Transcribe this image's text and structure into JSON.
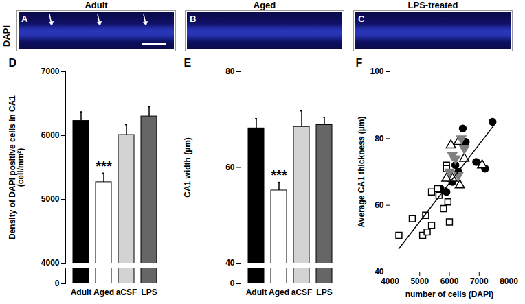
{
  "figure": {
    "row_label": "DAPI",
    "panels": [
      {
        "letter": "A",
        "title": "Adult"
      },
      {
        "letter": "B",
        "title": "Aged"
      },
      {
        "letter": "C",
        "title": "LPS-treated"
      }
    ]
  },
  "chart_data": [
    {
      "type": "bar",
      "panel": "D",
      "categories": [
        "Adult",
        "Aged",
        "aCSF",
        "LPS"
      ],
      "values": [
        6230,
        5270,
        6010,
        6300
      ],
      "errors": [
        140,
        140,
        160,
        150
      ],
      "colors": [
        "#000000",
        "#ffffff",
        "#d3d3d3",
        "#666666"
      ],
      "ylabel": "Density of DAPI positive cells in CA1\n(cell/mm²)",
      "ylim": [
        4000,
        7000
      ],
      "yticks": [
        4000,
        5000,
        6000,
        7000
      ],
      "ybreak": {
        "ylim": [
          0,
          200
        ],
        "yticks": [
          0
        ]
      },
      "annotations": [
        {
          "category": "Aged",
          "text": "***"
        }
      ]
    },
    {
      "type": "bar",
      "panel": "E",
      "categories": [
        "Adult",
        "Aged",
        "aCSF",
        "LPS"
      ],
      "values": [
        68.2,
        55.2,
        68.5,
        68.9
      ],
      "errors": [
        2.0,
        1.7,
        3.3,
        1.6
      ],
      "colors": [
        "#000000",
        "#ffffff",
        "#d3d3d3",
        "#666666"
      ],
      "ylabel": "CA1 width (µm)",
      "ylim": [
        40,
        80
      ],
      "yticks": [
        40,
        60,
        80
      ],
      "ybreak": {
        "ylim": [
          0,
          2.5
        ],
        "yticks": [
          0
        ]
      },
      "annotations": [
        {
          "category": "Aged",
          "text": "***"
        }
      ]
    },
    {
      "type": "scatter",
      "panel": "F",
      "xlabel": "number of cells (DAPI)",
      "ylabel": "Average CA1 thickness (µm)",
      "xlim": [
        4000,
        8000
      ],
      "xticks": [
        4000,
        5000,
        6000,
        7000,
        8000
      ],
      "ylim": [
        40,
        100
      ],
      "yticks": [
        40,
        60,
        80,
        100
      ],
      "series": [
        {
          "marker": "circle",
          "color": "#000000",
          "x": [
            6450,
            7450,
            6900,
            7200,
            6300,
            6100,
            5700,
            6550,
            6200,
            5900
          ],
          "values": [
            83,
            85,
            73,
            71,
            70,
            67,
            65,
            79,
            72,
            64
          ]
        },
        {
          "marker": "square-open",
          "color": "#000000",
          "x": [
            4300,
            4750,
            5100,
            5250,
            5400,
            5200,
            5400,
            5600,
            5900,
            5900,
            5950,
            6000,
            5800,
            5650
          ],
          "values": [
            51,
            56,
            51,
            52,
            54,
            57,
            64,
            65,
            72,
            71,
            61,
            55,
            59,
            63
          ]
        },
        {
          "marker": "triangle-open",
          "color": "#000000",
          "x": [
            6050,
            6300,
            6100,
            6500,
            7100,
            6350,
            5900
          ],
          "values": [
            78,
            79,
            68,
            74,
            72,
            66,
            68
          ]
        },
        {
          "marker": "triangle-down",
          "color": "#808080",
          "x": [
            6400,
            6500,
            6200,
            6000,
            6100,
            6300
          ],
          "values": [
            80,
            77,
            74,
            70,
            75,
            69
          ]
        },
        {
          "type": "line",
          "color": "#000000",
          "x": [
            4300,
            7500
          ],
          "values": [
            47,
            84
          ]
        }
      ]
    }
  ]
}
